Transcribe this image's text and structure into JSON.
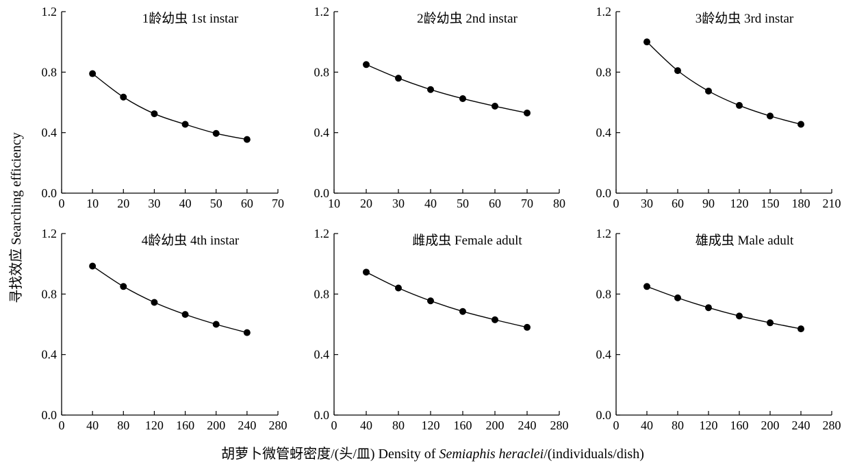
{
  "figure": {
    "y_axis_label": "寻找效应 Searching efficiency",
    "x_axis_label_pre": "胡萝卜微管蚜密度/(头/皿) Density of ",
    "x_axis_label_species": "Semiaphis heraclei",
    "x_axis_label_post": "/(individuals/dish)"
  },
  "chart_data": [
    {
      "type": "scatter",
      "title": "1龄幼虫 1st instar",
      "x": [
        10,
        20,
        30,
        40,
        50,
        60
      ],
      "y": [
        0.79,
        0.635,
        0.525,
        0.455,
        0.395,
        0.355
      ],
      "xlim": [
        0,
        70
      ],
      "ylim": [
        0,
        1.2
      ],
      "xticks": [
        0,
        10,
        20,
        30,
        40,
        50,
        60,
        70
      ],
      "yticks": [
        "0.0",
        "0.4",
        "0.8",
        "1.2"
      ],
      "fitted_curve": true,
      "grid": false
    },
    {
      "type": "scatter",
      "title": "2龄幼虫 2nd instar",
      "x": [
        20,
        30,
        40,
        50,
        60,
        70
      ],
      "y": [
        0.85,
        0.76,
        0.685,
        0.625,
        0.575,
        0.53
      ],
      "xlim": [
        10,
        80
      ],
      "ylim": [
        0,
        1.2
      ],
      "xticks": [
        10,
        20,
        30,
        40,
        50,
        60,
        70,
        80
      ],
      "yticks": [
        "0.0",
        "0.4",
        "0.8",
        "1.2"
      ],
      "fitted_curve": true,
      "grid": false
    },
    {
      "type": "scatter",
      "title": "3龄幼虫  3rd instar",
      "x": [
        30,
        60,
        90,
        120,
        150,
        180
      ],
      "y": [
        1.0,
        0.81,
        0.675,
        0.58,
        0.51,
        0.455
      ],
      "xlim": [
        0,
        210
      ],
      "ylim": [
        0,
        1.2
      ],
      "xticks": [
        0,
        30,
        60,
        90,
        120,
        150,
        180,
        210
      ],
      "yticks": [
        "0.0",
        "0.4",
        "0.8",
        "1.2"
      ],
      "fitted_curve": true,
      "grid": false
    },
    {
      "type": "scatter",
      "title": "4龄幼虫 4th instar",
      "x": [
        40,
        80,
        120,
        160,
        200,
        240
      ],
      "y": [
        0.985,
        0.85,
        0.745,
        0.665,
        0.6,
        0.545
      ],
      "xlim": [
        0,
        280
      ],
      "ylim": [
        0,
        1.2
      ],
      "xticks": [
        0,
        40,
        80,
        120,
        160,
        200,
        240,
        280
      ],
      "yticks": [
        "0.0",
        "0.4",
        "0.8",
        "1.2"
      ],
      "fitted_curve": true,
      "grid": false
    },
    {
      "type": "scatter",
      "title": "雌成虫 Female adult",
      "x": [
        40,
        80,
        120,
        160,
        200,
        240
      ],
      "y": [
        0.945,
        0.84,
        0.755,
        0.685,
        0.63,
        0.58
      ],
      "xlim": [
        0,
        280
      ],
      "ylim": [
        0,
        1.2
      ],
      "xticks": [
        0,
        40,
        80,
        120,
        160,
        200,
        240,
        280
      ],
      "yticks": [
        "0.0",
        "0.4",
        "0.8",
        "1.2"
      ],
      "fitted_curve": true,
      "grid": false
    },
    {
      "type": "scatter",
      "title": "雄成虫 Male adult",
      "x": [
        40,
        80,
        120,
        160,
        200,
        240
      ],
      "y": [
        0.85,
        0.775,
        0.71,
        0.655,
        0.61,
        0.57
      ],
      "xlim": [
        0,
        280
      ],
      "ylim": [
        0,
        1.2
      ],
      "xticks": [
        0,
        40,
        80,
        120,
        160,
        200,
        240,
        280
      ],
      "yticks": [
        "0.0",
        "0.4",
        "0.8",
        "1.2"
      ],
      "fitted_curve": true,
      "grid": false
    }
  ]
}
